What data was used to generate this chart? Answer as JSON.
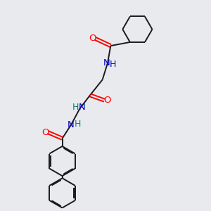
{
  "background_color": "#e8eaed",
  "bond_color": "#1a1a1a",
  "atom_colors": {
    "O": "#ff0000",
    "N": "#0000cc",
    "N_teal": "#008080",
    "C": "#1a1a1a",
    "H": "#1a1a1a"
  },
  "lw": 1.4,
  "fs": 9.5,
  "figsize": [
    3.0,
    3.0
  ],
  "dpi": 100
}
